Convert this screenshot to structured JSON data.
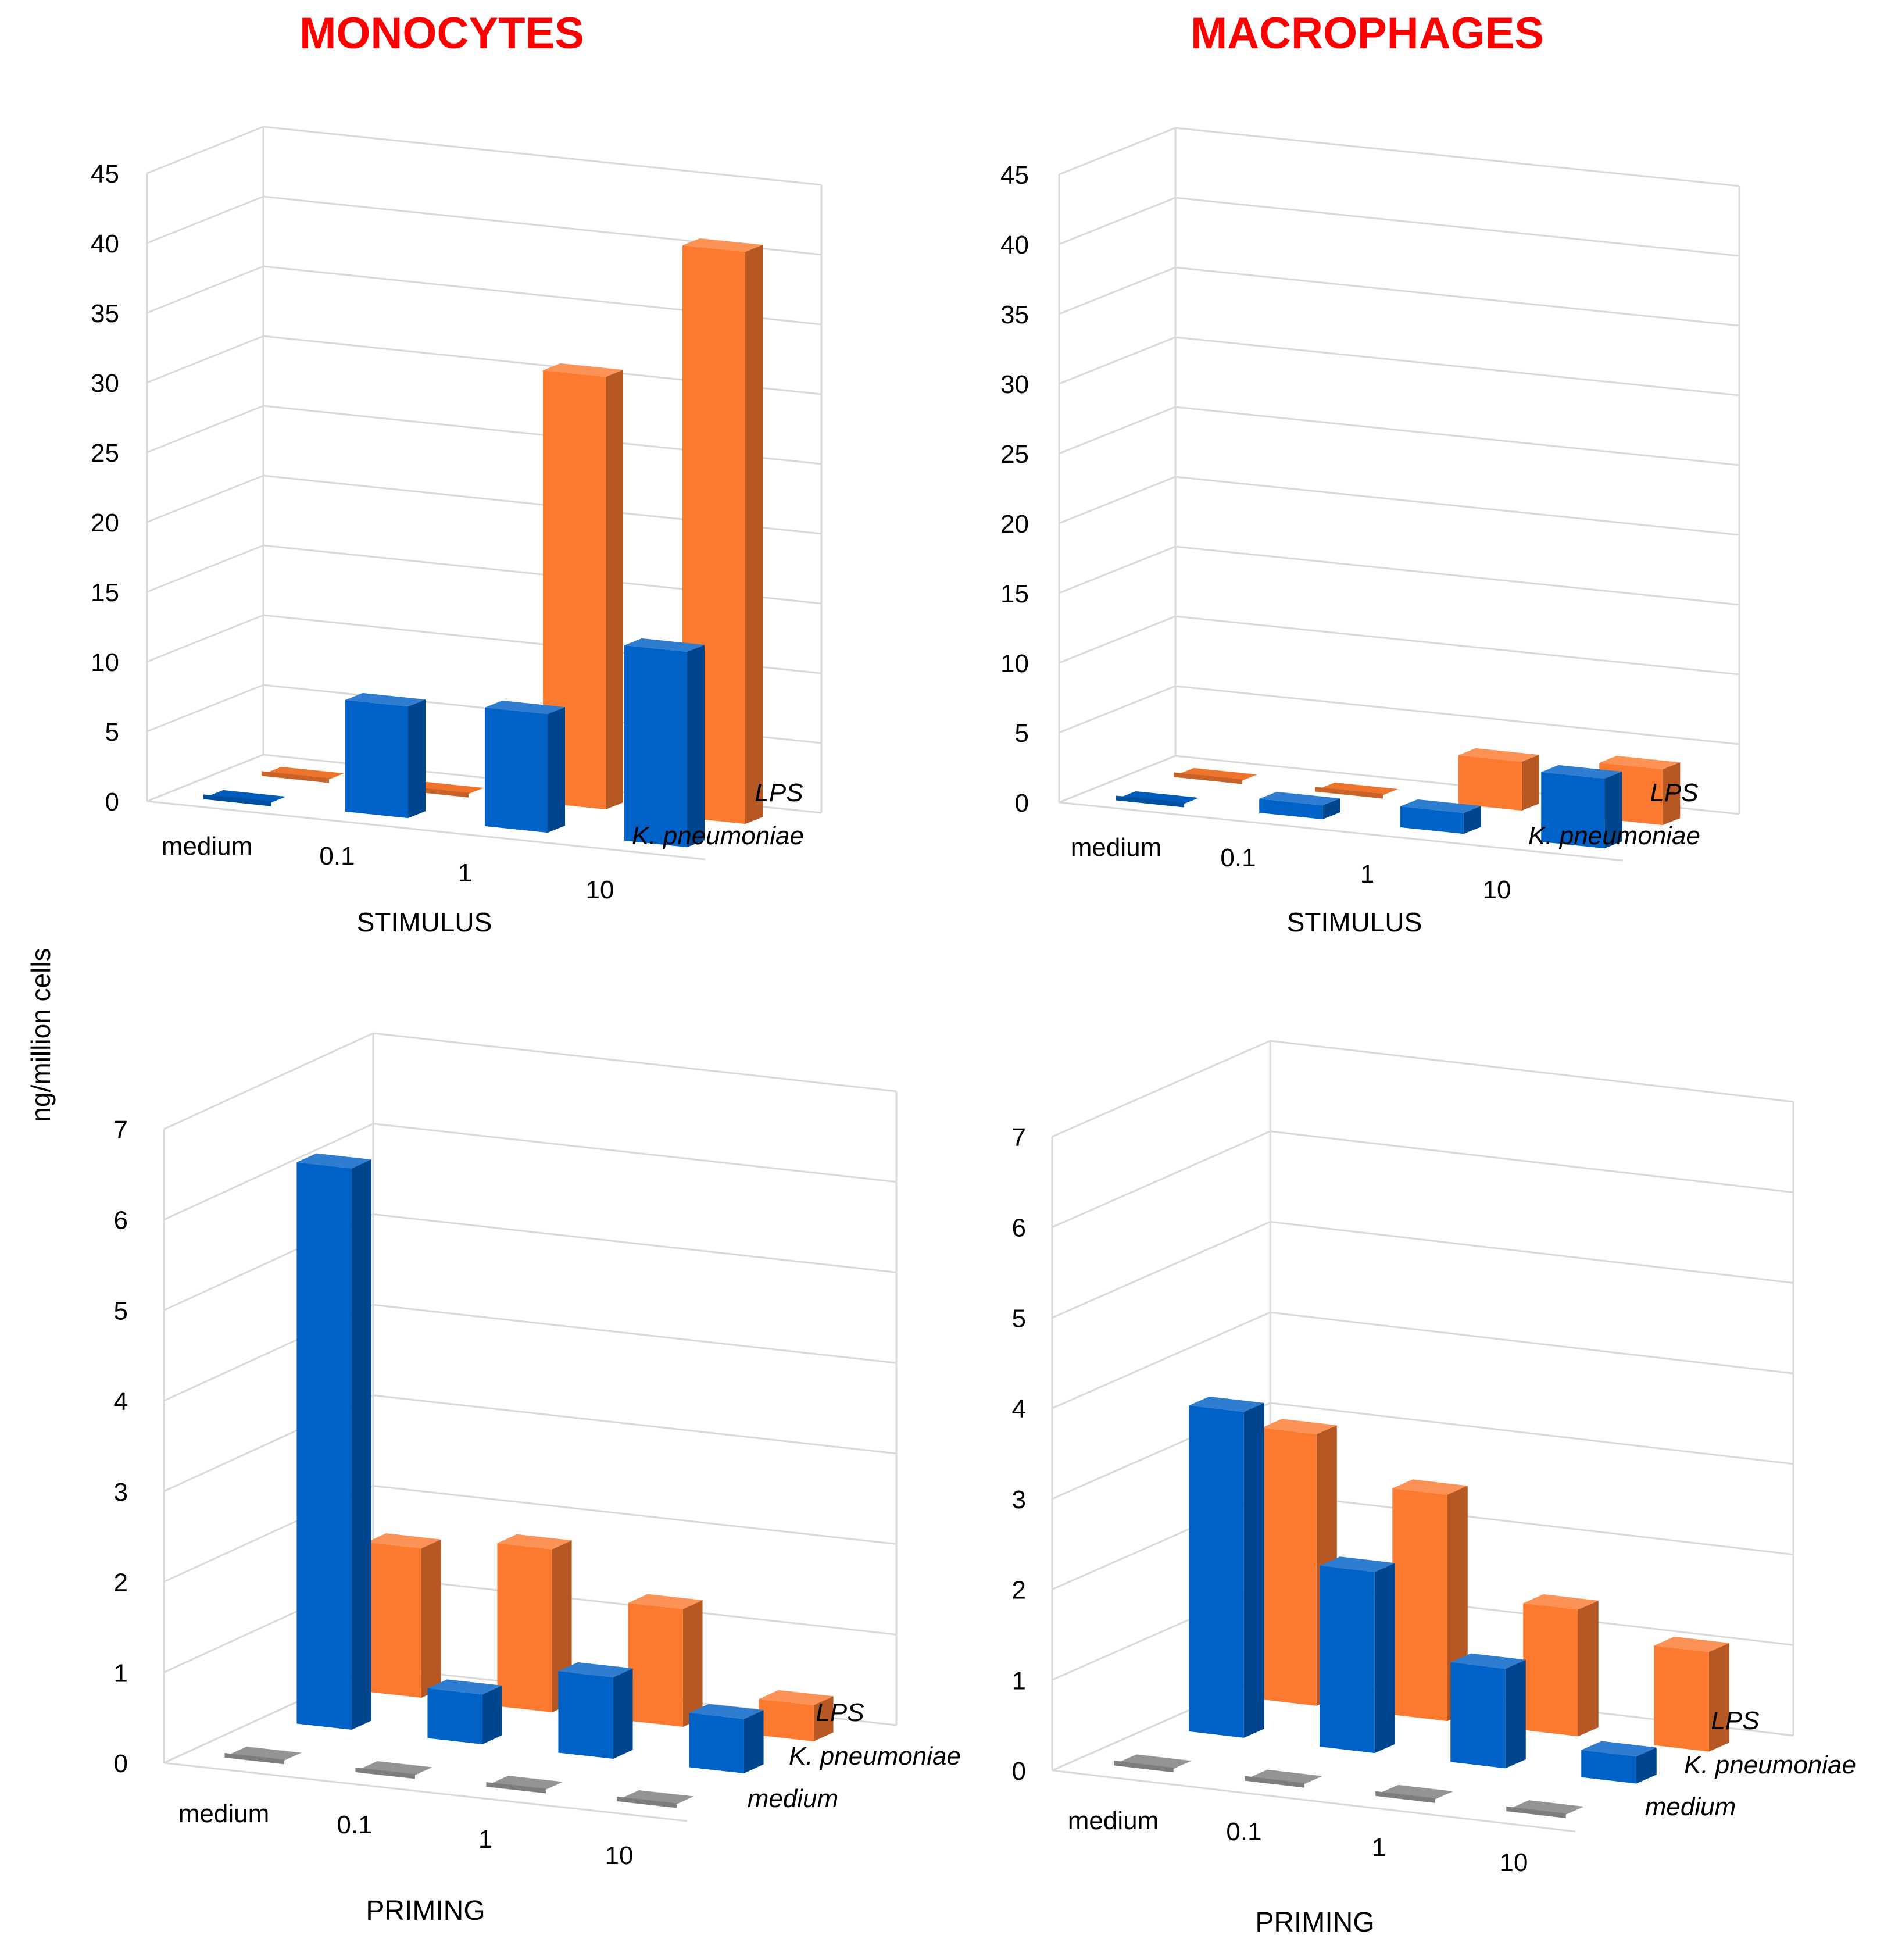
{
  "titles": {
    "monocytes": "MONOCYTES",
    "macrophages": "MACROPHAGES"
  },
  "y_axis_label": "ng/million cells",
  "colors": {
    "kpneumoniae": "#0061c6",
    "lps": "#fb7a30",
    "medium": "#9c9c9c",
    "grid": "#d9d9d9"
  },
  "chart_data": [
    {
      "id": "monocytes-stimulus",
      "type": "bar",
      "title": "MONOCYTES",
      "xlabel": "STIMULUS",
      "ylabel": "ng/million cells",
      "categories": [
        "medium",
        "0.1",
        "1",
        "10"
      ],
      "yticks": [
        "0",
        "5",
        "10",
        "15",
        "20",
        "25",
        "30",
        "35",
        "40",
        "45"
      ],
      "ylim": [
        0,
        45
      ],
      "series": [
        {
          "name": "LPS",
          "color": "#fb7a30",
          "values": [
            0,
            0,
            31,
            41
          ]
        },
        {
          "name": "K. pneumoniae",
          "color": "#0061c6",
          "values": [
            0,
            8,
            8.5,
            14
          ]
        }
      ]
    },
    {
      "id": "macrophages-stimulus",
      "type": "bar",
      "title": "MACROPHAGES",
      "xlabel": "STIMULUS",
      "ylabel": "ng/million cells",
      "categories": [
        "medium",
        "0.1",
        "1",
        "10"
      ],
      "yticks": [
        "0",
        "5",
        "10",
        "15",
        "20",
        "25",
        "30",
        "35",
        "40",
        "45"
      ],
      "ylim": [
        0,
        45
      ],
      "series": [
        {
          "name": "LPS",
          "color": "#fb7a30",
          "values": [
            0,
            0,
            3.5,
            4
          ]
        },
        {
          "name": "K. pneumoniae",
          "color": "#0061c6",
          "values": [
            0,
            1,
            1.5,
            5
          ]
        }
      ]
    },
    {
      "id": "monocytes-priming",
      "type": "bar",
      "title": "MONOCYTES",
      "xlabel": "PRIMING",
      "ylabel": "ng/million cells",
      "categories": [
        "medium",
        "0.1",
        "1",
        "10"
      ],
      "yticks": [
        "0",
        "1",
        "2",
        "3",
        "4",
        "5",
        "6",
        "7"
      ],
      "ylim": [
        0,
        7
      ],
      "series": [
        {
          "name": "LPS",
          "color": "#fb7a30",
          "values": [
            1.65,
            1.8,
            1.3,
            0.4
          ]
        },
        {
          "name": "K. pneumoniae",
          "color": "#0061c6",
          "values": [
            6.2,
            0.55,
            0.9,
            0.6
          ]
        },
        {
          "name": "medium",
          "color": "#9c9c9c",
          "values": [
            0,
            0,
            0,
            0
          ]
        }
      ]
    },
    {
      "id": "macrophages-priming",
      "type": "bar",
      "title": "MACROPHAGES",
      "xlabel": "PRIMING",
      "ylabel": "ng/million cells",
      "categories": [
        "medium",
        "0.1",
        "1",
        "10"
      ],
      "yticks": [
        "0",
        "1",
        "2",
        "3",
        "4",
        "5",
        "6",
        "7"
      ],
      "ylim": [
        0,
        7
      ],
      "series": [
        {
          "name": "LPS",
          "color": "#fb7a30",
          "values": [
            3.0,
            2.5,
            1.4,
            1.1
          ]
        },
        {
          "name": "K. pneumoniae",
          "color": "#0061c6",
          "values": [
            3.6,
            2.0,
            1.1,
            0.3
          ]
        },
        {
          "name": "medium",
          "color": "#9c9c9c",
          "values": [
            0,
            0,
            0,
            0
          ]
        }
      ]
    }
  ]
}
